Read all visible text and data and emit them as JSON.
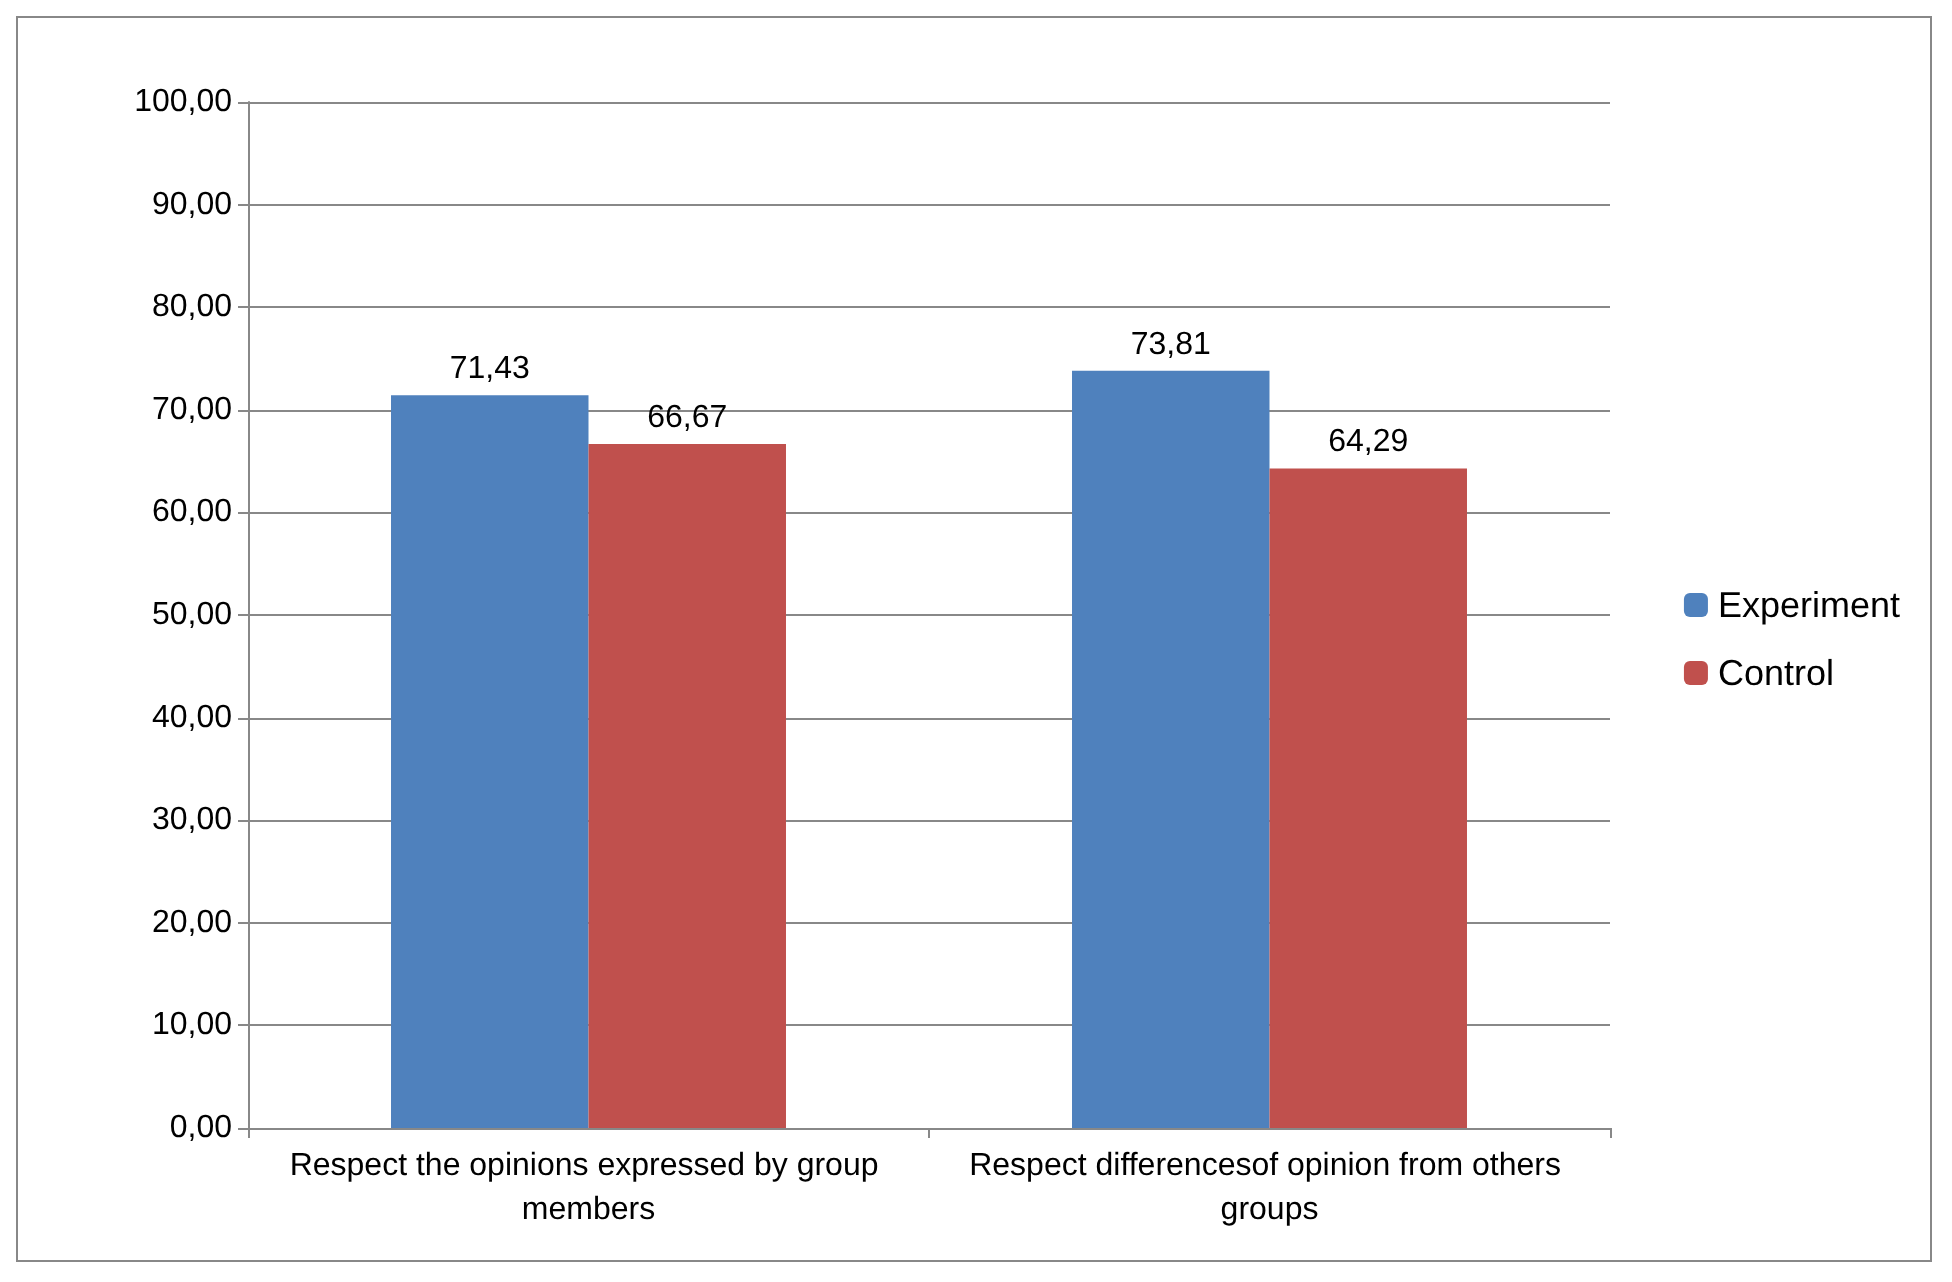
{
  "chart_data": {
    "type": "bar",
    "categories": [
      "Respect the opinions expressed by group members",
      "Respect differencesof opinion from others groups"
    ],
    "series": [
      {
        "name": "Experiment",
        "color": "#4f81bd",
        "values": [
          71.43,
          73.81
        ],
        "value_labels": [
          "71,43",
          "73,81"
        ]
      },
      {
        "name": "Control",
        "color": "#c0504d",
        "values": [
          66.67,
          64.29
        ],
        "value_labels": [
          "66,67",
          "64,29"
        ]
      }
    ],
    "ylim": [
      0,
      100
    ],
    "yticks": [
      {
        "value": 0,
        "label": "0,00"
      },
      {
        "value": 10,
        "label": "10,00"
      },
      {
        "value": 20,
        "label": "20,00"
      },
      {
        "value": 30,
        "label": "30,00"
      },
      {
        "value": 40,
        "label": "40,00"
      },
      {
        "value": 50,
        "label": "50,00"
      },
      {
        "value": 60,
        "label": "60,00"
      },
      {
        "value": 70,
        "label": "70,00"
      },
      {
        "value": 80,
        "label": "80,00"
      },
      {
        "value": 90,
        "label": "90,00"
      },
      {
        "value": 100,
        "label": "100,00"
      }
    ],
    "grid": "y",
    "legend": "right"
  }
}
